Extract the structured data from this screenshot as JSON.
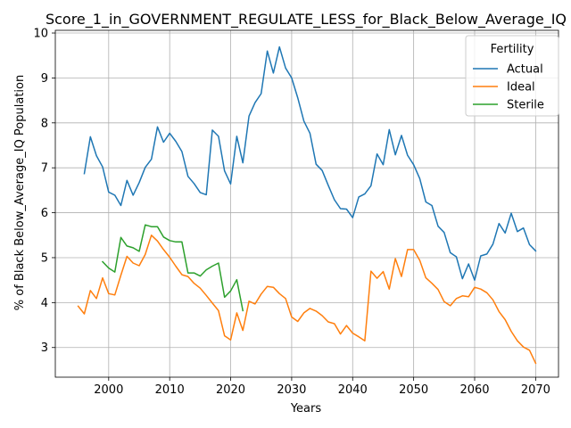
{
  "chart_data": {
    "type": "line",
    "title": "Score_1_in_GOVERNMENT_REGULATE_LESS_for_Black_Below_Average_IQ",
    "xlabel": "Years",
    "ylabel": "% of Black Below_Average_IQ Population",
    "xlim": [
      1991.25,
      2073.75
    ],
    "ylim": [
      2.34,
      10.06
    ],
    "xticks": [
      2000,
      2010,
      2020,
      2030,
      2040,
      2050,
      2060,
      2070
    ],
    "yticks": [
      3,
      4,
      5,
      6,
      7,
      8,
      9,
      10
    ],
    "grid": true,
    "legend": {
      "title": "Fertility",
      "position": "top-right"
    },
    "series": [
      {
        "name": "Actual",
        "color": "#1f77b4",
        "x": [
          1996,
          1997,
          1998,
          1999,
          2000,
          2001,
          2002,
          2003,
          2004,
          2005,
          2006,
          2007,
          2008,
          2009,
          2010,
          2011,
          2012,
          2013,
          2014,
          2015,
          2016,
          2017,
          2018,
          2019,
          2020,
          2021,
          2022,
          2023,
          2024,
          2025,
          2026,
          2027,
          2028,
          2029,
          2030,
          2031,
          2032,
          2033,
          2034,
          2035,
          2036,
          2037,
          2038,
          2039,
          2040,
          2041,
          2042,
          2043,
          2044,
          2045,
          2046,
          2047,
          2048,
          2049,
          2050,
          2051,
          2052,
          2053,
          2054,
          2055,
          2056,
          2057,
          2058,
          2059,
          2060,
          2061,
          2062,
          2063,
          2064,
          2065,
          2066,
          2067,
          2068,
          2069,
          2070
        ],
        "values": [
          6.87,
          7.69,
          7.27,
          7.02,
          6.46,
          6.39,
          6.16,
          6.72,
          6.39,
          6.67,
          7.01,
          7.19,
          7.91,
          7.57,
          7.77,
          7.59,
          7.36,
          6.81,
          6.65,
          6.45,
          6.4,
          7.84,
          7.7,
          6.93,
          6.64,
          7.7,
          7.11,
          8.15,
          8.45,
          8.65,
          9.6,
          9.11,
          9.69,
          9.22,
          9.0,
          8.56,
          8.04,
          7.77,
          7.08,
          6.94,
          6.61,
          6.29,
          6.09,
          6.08,
          5.89,
          6.35,
          6.42,
          6.6,
          7.31,
          7.07,
          7.85,
          7.29,
          7.72,
          7.28,
          7.07,
          6.76,
          6.24,
          6.16,
          5.7,
          5.56,
          5.11,
          5.02,
          4.53,
          4.86,
          4.5,
          5.04,
          5.08,
          5.3,
          5.76,
          5.55,
          5.99,
          5.58,
          5.66,
          5.29,
          5.15
        ]
      },
      {
        "name": "Ideal",
        "color": "#ff7f0e",
        "x": [
          1995,
          1996,
          1997,
          1998,
          1999,
          2000,
          2001,
          2002,
          2003,
          2004,
          2005,
          2006,
          2007,
          2008,
          2009,
          2010,
          2011,
          2012,
          2013,
          2014,
          2015,
          2016,
          2017,
          2018,
          2019,
          2020,
          2021,
          2022,
          2023,
          2024,
          2025,
          2026,
          2027,
          2028,
          2029,
          2030,
          2031,
          2032,
          2033,
          2034,
          2035,
          2036,
          2037,
          2038,
          2039,
          2040,
          2041,
          2042,
          2043,
          2044,
          2045,
          2046,
          2047,
          2048,
          2049,
          2050,
          2051,
          2052,
          2053,
          2054,
          2055,
          2056,
          2057,
          2058,
          2059,
          2060,
          2061,
          2062,
          2063,
          2064,
          2065,
          2066,
          2067,
          2068,
          2069,
          2070
        ],
        "values": [
          3.92,
          3.75,
          4.27,
          4.09,
          4.55,
          4.2,
          4.17,
          4.61,
          5.03,
          4.88,
          4.82,
          5.07,
          5.5,
          5.37,
          5.18,
          5.01,
          4.81,
          4.62,
          4.58,
          4.43,
          4.32,
          4.16,
          3.99,
          3.82,
          3.26,
          3.17,
          3.77,
          3.38,
          4.03,
          3.97,
          4.19,
          4.36,
          4.34,
          4.2,
          4.09,
          3.68,
          3.58,
          3.77,
          3.87,
          3.81,
          3.71,
          3.57,
          3.53,
          3.3,
          3.49,
          3.32,
          3.24,
          3.15,
          4.7,
          4.54,
          4.69,
          4.3,
          4.98,
          4.58,
          5.18,
          5.18,
          4.94,
          4.55,
          4.43,
          4.29,
          4.02,
          3.93,
          4.09,
          4.15,
          4.13,
          4.34,
          4.3,
          4.22,
          4.06,
          3.8,
          3.62,
          3.36,
          3.15,
          3.01,
          2.94,
          2.65
        ]
      },
      {
        "name": "Sterile",
        "color": "#2ca02c",
        "x": [
          1999,
          2000,
          2001,
          2002,
          2003,
          2004,
          2005,
          2006,
          2007,
          2008,
          2009,
          2010,
          2011,
          2012,
          2013,
          2014,
          2015,
          2016,
          2017,
          2018,
          2019,
          2020,
          2021,
          2022
        ],
        "values": [
          4.91,
          4.77,
          4.68,
          5.45,
          5.26,
          5.22,
          5.14,
          5.73,
          5.69,
          5.69,
          5.46,
          5.38,
          5.35,
          5.35,
          4.66,
          4.66,
          4.59,
          4.73,
          4.81,
          4.88,
          4.12,
          4.26,
          4.51,
          3.82
        ]
      }
    ]
  }
}
